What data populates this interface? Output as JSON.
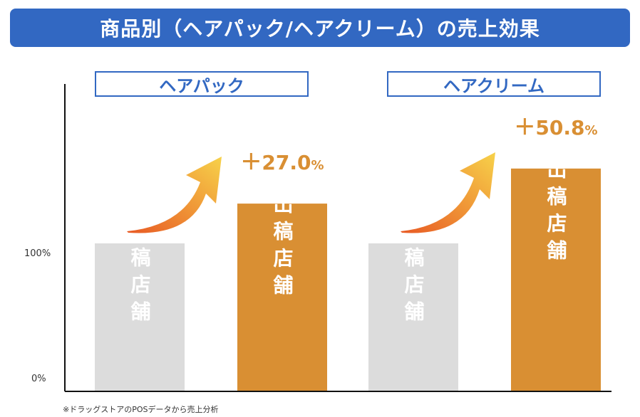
{
  "chart_data": {
    "type": "bar",
    "title": "商品別（ヘアパック/ヘアクリーム）の売上効果",
    "y_tick_labels": [
      "100%",
      "0%"
    ],
    "ylim": [
      0,
      180
    ],
    "groups": [
      {
        "category": "ヘアパック",
        "bars": [
          {
            "label": "非出稿店舗",
            "value": 100
          },
          {
            "label": "広告出稿店舗",
            "value": 127.0
          }
        ],
        "uplift_sign": "＋",
        "uplift_value": "27.0",
        "uplift_unit": "%"
      },
      {
        "category": "ヘアクリーム",
        "bars": [
          {
            "label": "非出稿店舗",
            "value": 100
          },
          {
            "label": "広告出稿店舗",
            "value": 150.8
          }
        ],
        "uplift_sign": "＋",
        "uplift_value": "50.8",
        "uplift_unit": "%"
      }
    ],
    "colors": {
      "non_ad_bar": "#dcdcdc",
      "ad_bar": "#d98f33",
      "accent": "#3268c2",
      "uplift_text": "#d98f33"
    }
  },
  "footnote": "※ドラッグストアのPOSデータから売上分析"
}
